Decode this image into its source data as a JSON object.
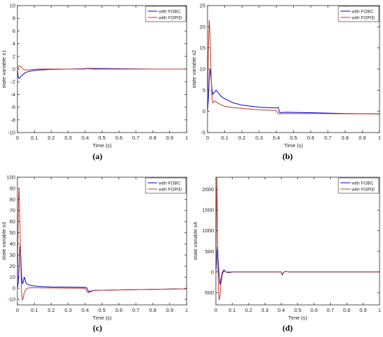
{
  "chart_data": [
    {
      "type": "line",
      "panel_label": "(a)",
      "xlabel": "Time (s)",
      "ylabel": "state variable s1",
      "xlim": [
        0,
        1
      ],
      "ylim": [
        -10,
        10
      ],
      "xticks": [
        0,
        0.1,
        0.2,
        0.3,
        0.4,
        0.5,
        0.6,
        0.7,
        0.8,
        0.9,
        1
      ],
      "yticks": [
        -10,
        -8,
        -6,
        -4,
        -2,
        0,
        2,
        4,
        6,
        8,
        10
      ],
      "legend_position": "top-right",
      "grid": false,
      "series": [
        {
          "name": "with FOBC",
          "color": "#0000cc",
          "x": [
            0,
            0.005,
            0.01,
            0.02,
            0.03,
            0.05,
            0.08,
            0.12,
            0.2,
            0.3,
            0.4,
            0.41,
            0.45,
            0.6,
            0.8,
            1.0
          ],
          "y": [
            0,
            -1.3,
            -1.5,
            -1.2,
            -0.9,
            -0.5,
            -0.3,
            -0.15,
            -0.05,
            0.0,
            0.05,
            0.1,
            0.1,
            0.05,
            0.0,
            0.0
          ]
        },
        {
          "name": "with FOPID",
          "color": "#c0392b",
          "x": [
            0,
            0.005,
            0.01,
            0.02,
            0.03,
            0.04,
            0.05,
            0.08,
            0.12,
            0.2,
            0.4,
            0.41,
            0.45,
            0.6,
            1.0
          ],
          "y": [
            0,
            0.3,
            0.5,
            0.4,
            0.1,
            -0.1,
            -0.15,
            -0.1,
            0.0,
            0.0,
            0.0,
            0.05,
            0.0,
            0.0,
            0.0
          ]
        }
      ]
    },
    {
      "type": "line",
      "panel_label": "(b)",
      "xlabel": "Time (s)",
      "ylabel": "state variable s2",
      "xlim": [
        0,
        1
      ],
      "ylim": [
        -5,
        25
      ],
      "xticks": [
        0,
        0.1,
        0.2,
        0.3,
        0.4,
        0.5,
        0.6,
        0.7,
        0.8,
        0.9,
        1
      ],
      "yticks": [
        -5,
        0,
        5,
        10,
        15,
        20,
        25
      ],
      "legend_position": "top-right",
      "grid": false,
      "series": [
        {
          "name": "with FOBC",
          "color": "#0000cc",
          "x": [
            0,
            0.005,
            0.01,
            0.015,
            0.02,
            0.025,
            0.03,
            0.04,
            0.05,
            0.06,
            0.08,
            0.1,
            0.15,
            0.2,
            0.3,
            0.4,
            0.41,
            0.42,
            0.45,
            0.6,
            0.8,
            1.0
          ],
          "y": [
            0,
            3,
            8,
            10,
            8,
            5.5,
            4,
            4.5,
            5,
            4.5,
            3.5,
            3,
            2,
            1.5,
            1.0,
            0.8,
            1.0,
            -0.3,
            -0.2,
            -0.3,
            -0.5,
            -0.6
          ]
        },
        {
          "name": "with FOPID",
          "color": "#c0392b",
          "x": [
            0,
            0.005,
            0.01,
            0.015,
            0.02,
            0.025,
            0.03,
            0.035,
            0.04,
            0.05,
            0.06,
            0.08,
            0.1,
            0.15,
            0.2,
            0.3,
            0.4,
            0.41,
            0.42,
            0.45,
            0.6,
            1.0
          ],
          "y": [
            0,
            15,
            21.5,
            18,
            10,
            4,
            2,
            2.2,
            2.5,
            2.2,
            2.0,
            1.5,
            1.2,
            0.9,
            0.7,
            0.4,
            0.2,
            -0.5,
            -0.6,
            -0.5,
            -0.5,
            -0.6
          ]
        }
      ]
    },
    {
      "type": "line",
      "panel_label": "(c)",
      "xlabel": "Time (s)",
      "ylabel": "state variable s3",
      "xlim": [
        0,
        1
      ],
      "ylim": [
        -15,
        100
      ],
      "xticks": [
        0,
        0.1,
        0.2,
        0.3,
        0.4,
        0.5,
        0.6,
        0.7,
        0.8,
        0.9,
        1
      ],
      "yticks": [
        -10,
        0,
        10,
        20,
        30,
        40,
        50,
        60,
        70,
        80,
        90,
        100
      ],
      "legend_position": "top-right",
      "grid": false,
      "series": [
        {
          "name": "with FOBC",
          "color": "#0000cc",
          "x": [
            0,
            0.005,
            0.01,
            0.015,
            0.02,
            0.025,
            0.03,
            0.035,
            0.04,
            0.045,
            0.05,
            0.06,
            0.08,
            0.1,
            0.15,
            0.2,
            0.3,
            0.4,
            0.41,
            0.42,
            0.45,
            0.6,
            0.8,
            1.0
          ],
          "y": [
            0,
            5,
            20,
            38,
            28,
            10,
            4,
            6,
            10,
            8,
            5,
            3.5,
            2.5,
            2,
            1.5,
            1.2,
            1,
            0.8,
            0.5,
            -3,
            -2,
            -1.5,
            -1,
            -0.5
          ]
        },
        {
          "name": "with FOPID",
          "color": "#c0392b",
          "x": [
            0,
            0.003,
            0.006,
            0.01,
            0.015,
            0.02,
            0.025,
            0.03,
            0.035,
            0.04,
            0.05,
            0.06,
            0.08,
            0.1,
            0.15,
            0.2,
            0.3,
            0.4,
            0.41,
            0.42,
            0.45,
            0.6,
            1.0
          ],
          "y": [
            0,
            40,
            80,
            90,
            60,
            20,
            -5,
            -11,
            -8,
            -4,
            -1,
            0,
            0.5,
            0.5,
            0.3,
            0.2,
            0,
            0,
            -3,
            -4,
            -2,
            -1.5,
            -0.5
          ]
        }
      ]
    },
    {
      "type": "line",
      "panel_label": "(d)",
      "xlabel": "Time (s)",
      "ylabel": "state variable s4",
      "xlim": [
        0,
        1
      ],
      "ylim": [
        -800,
        2300
      ],
      "xticks": [
        0,
        0.1,
        0.2,
        0.3,
        0.4,
        0.5,
        0.6,
        0.7,
        0.8,
        0.9,
        1
      ],
      "yticks": [
        -500,
        0,
        500,
        1000,
        1500,
        2000
      ],
      "legend_position": "top-right",
      "grid": false,
      "series": [
        {
          "name": "with FOBC",
          "color": "#0000cc",
          "x": [
            0,
            0.005,
            0.01,
            0.015,
            0.02,
            0.025,
            0.03,
            0.04,
            0.05,
            0.06,
            0.08,
            0.1,
            0.2,
            0.4,
            0.405,
            0.41,
            0.42,
            0.45,
            0.6,
            1.0
          ],
          "y": [
            0,
            300,
            620,
            200,
            -100,
            -300,
            -200,
            0,
            50,
            0,
            -20,
            0,
            0,
            0,
            -60,
            -30,
            10,
            0,
            0,
            0
          ]
        },
        {
          "name": "with FOPID",
          "color": "#c0392b",
          "x": [
            0,
            0.003,
            0.006,
            0.009,
            0.012,
            0.016,
            0.02,
            0.025,
            0.03,
            0.04,
            0.05,
            0.06,
            0.08,
            0.1,
            0.2,
            0.4,
            0.405,
            0.41,
            0.42,
            0.45,
            0.6,
            1.0
          ],
          "y": [
            0,
            1200,
            2300,
            1500,
            200,
            -500,
            -680,
            -600,
            -300,
            -50,
            30,
            0,
            0,
            0,
            0,
            0,
            -80,
            -40,
            10,
            0,
            0,
            0
          ]
        }
      ]
    }
  ]
}
